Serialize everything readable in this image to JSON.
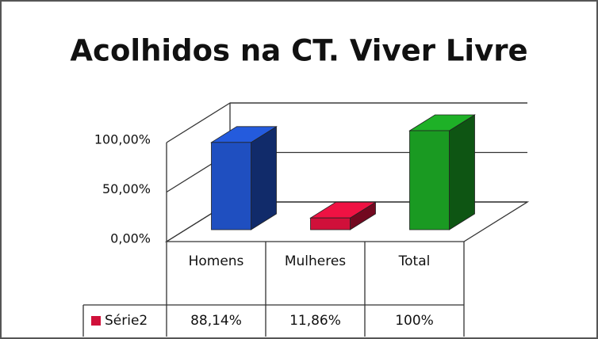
{
  "chart_data": {
    "type": "bar3d",
    "title": "Acolhidos na CT. Viver Livre",
    "categories": [
      "Homens",
      "Mulheres",
      "Total"
    ],
    "series": [
      {
        "name": "Série2",
        "color": "#d0103a",
        "colors": [
          "#1f4fc0",
          "#d0103a",
          "#1a9a22"
        ],
        "values": [
          88.14,
          11.86,
          100
        ],
        "value_labels": [
          "88,14%",
          "11,86%",
          "100%"
        ]
      }
    ],
    "ylim": [
      0,
      100
    ],
    "yticks": [
      {
        "value": 0,
        "label": "0,00%"
      },
      {
        "value": 50,
        "label": "50,00%"
      },
      {
        "value": 100,
        "label": "100,00%"
      }
    ],
    "grid": true
  }
}
